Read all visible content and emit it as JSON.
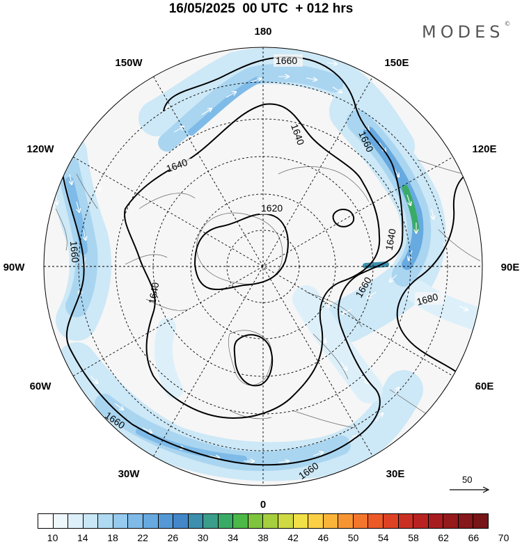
{
  "header": {
    "title": "16/05/2025  00 UTC  + 012 hrs",
    "brand": "MODES",
    "brand_mark": "©"
  },
  "map": {
    "projection": "north-polar-stereographic",
    "longitude_labels": {
      "top": "180",
      "bottom": "0",
      "left": "90W",
      "right": "90E",
      "upper_left_1": "150W",
      "upper_left_2": "120W",
      "lower_left_1": "60W",
      "lower_left_2": "30W",
      "upper_right_1": "150E",
      "upper_right_2": "120E",
      "lower_right_1": "60E",
      "lower_right_2": "30E"
    },
    "contour_labels": [
      "1660",
      "1640",
      "1660",
      "1640",
      "1620",
      "1660",
      "1640",
      "1640",
      "1660",
      "1680",
      "1660",
      "1660"
    ],
    "vector_reference": {
      "value": "50",
      "icon": "arrow-right-icon"
    }
  },
  "colorbar": {
    "tick_labels": [
      "10",
      "14",
      "18",
      "22",
      "26",
      "30",
      "34",
      "38",
      "42",
      "46",
      "50",
      "54",
      "58",
      "62",
      "66",
      "70"
    ],
    "colors": [
      "#ffffff",
      "#eef7fc",
      "#ddf0fa",
      "#c9e7f7",
      "#b0daf2",
      "#96cbee",
      "#7fbbe8",
      "#67aae0",
      "#5499d6",
      "#4387c9",
      "#3d8fae",
      "#3b9e8a",
      "#3aab67",
      "#4cb847",
      "#7ec43d",
      "#a6cf3d",
      "#cfd942",
      "#f1e048",
      "#fbd044",
      "#fbb43a",
      "#f89533",
      "#f3762d",
      "#ec5a28",
      "#de4225",
      "#c93023",
      "#b82322",
      "#a71d1f",
      "#951a1c",
      "#86171a",
      "#781518"
    ]
  }
}
